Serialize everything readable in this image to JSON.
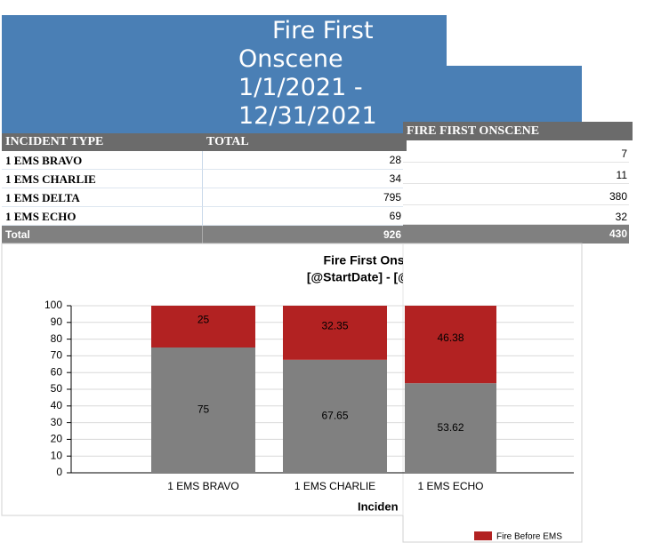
{
  "header": {
    "title_lines": [
      "Fire First",
      "Onscene",
      "1/1/2021 -",
      "12/31/2021"
    ]
  },
  "table": {
    "columns": [
      "INCIDENT TYPE",
      "TOTAL"
    ],
    "rows": [
      [
        "1 EMS BRAVO",
        28
      ],
      [
        "1 EMS CHARLIE",
        34
      ],
      [
        "1 EMS DELTA",
        795
      ],
      [
        "1 EMS ECHO",
        69
      ]
    ],
    "total": [
      "Total",
      926
    ]
  },
  "side_table": {
    "column": "FIRE FIRST ONSCENE",
    "rows": [
      7,
      11,
      380,
      32
    ],
    "total": 430
  },
  "chart_data": {
    "type": "bar",
    "stacked": true,
    "title": "Fire First Onscene",
    "subtitle": "[@StartDate] - [@EndDa",
    "x_label": "Inciden",
    "categories": [
      "1 EMS BRAVO",
      "1 EMS CHARLIE",
      "1 EMS ECHO"
    ],
    "series": [
      {
        "color": "#808080",
        "values": [
          75,
          67.65,
          53.62
        ]
      },
      {
        "name": "Fire Before EMS",
        "color": "#b22222",
        "values": [
          25,
          32.35,
          46.38
        ]
      }
    ],
    "ylim": [
      0,
      100
    ],
    "yticks": [
      0,
      10,
      20,
      30,
      40,
      50,
      60,
      70,
      80,
      90,
      100
    ],
    "grid": true
  }
}
